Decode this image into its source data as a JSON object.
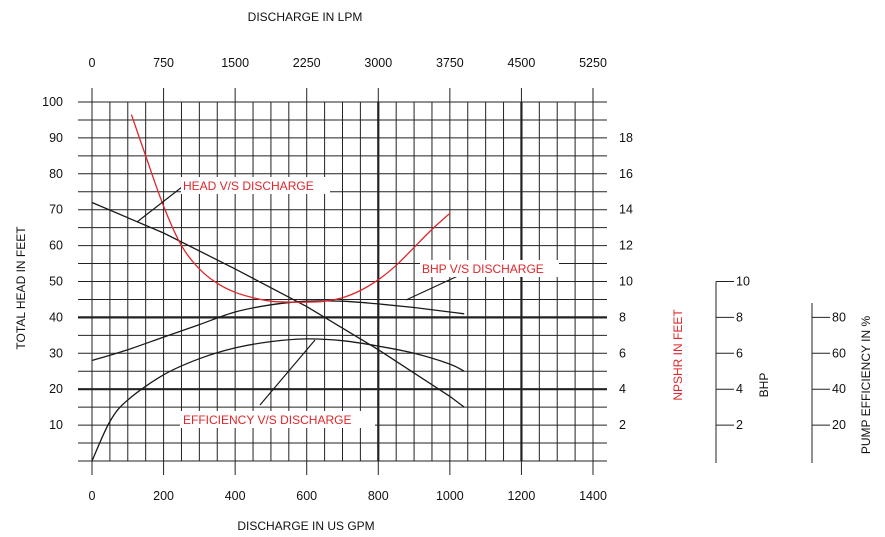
{
  "colors": {
    "curve_black": "#1a1a1a",
    "curve_red": "#e0262b",
    "grid": "#222222",
    "text": "#111111"
  },
  "chart_data": {
    "type": "line",
    "title": "",
    "xlabel": "DISCHARGE IN US GPM",
    "x2label": "DISCHARGE IN LPM",
    "ylabel": "TOTAL HEAD IN FEET",
    "y2label": "NPSHR IN FEET",
    "y3label": "BHP",
    "y4label": "PUMP EFFICIENCY IN %",
    "xlim": [
      0,
      1400
    ],
    "x2lim": [
      0,
      5250
    ],
    "ylim": [
      0,
      100
    ],
    "y2lim": [
      0,
      20
    ],
    "grid": true,
    "x_ticks": [
      "0",
      "200",
      "400",
      "600",
      "800",
      "1000",
      "1200",
      "1400"
    ],
    "x2_ticks": [
      "0",
      "750",
      "1500",
      "2250",
      "3000",
      "3750",
      "4500",
      "5250"
    ],
    "y_ticks": [
      "10",
      "20",
      "30",
      "40",
      "50",
      "60",
      "70",
      "80",
      "90",
      "100"
    ],
    "y2_ticks": [
      "2",
      "4",
      "6",
      "8",
      "10",
      "12",
      "14",
      "16",
      "18"
    ],
    "y3_ticks": [
      "2",
      "4",
      "6",
      "8",
      "10"
    ],
    "y4_ticks": [
      "20",
      "40",
      "60",
      "80"
    ],
    "series": [
      {
        "name": "HEAD V/S DISCHARGE",
        "axis": "TOTAL HEAD IN FEET",
        "color": "#1a1a1a",
        "x": [
          0,
          200,
          400,
          600,
          800,
          1000,
          1040
        ],
        "y": [
          72,
          63.5,
          53.5,
          43,
          31,
          18,
          15
        ]
      },
      {
        "name": "BHP V/S DISCHARGE",
        "axis": "BHP",
        "color": "#1a1a1a",
        "x": [
          0,
          100,
          200,
          300,
          400,
          500,
          600,
          700,
          800,
          900,
          1000,
          1040
        ],
        "y": [
          5.6,
          6.2,
          6.9,
          7.6,
          8.3,
          8.7,
          8.9,
          8.9,
          8.75,
          8.55,
          8.3,
          8.2
        ]
      },
      {
        "name": "EFFICIENCY V/S DISCHARGE",
        "axis": "PUMP EFFICIENCY IN %",
        "color": "#1a1a1a",
        "x": [
          0,
          50,
          100,
          200,
          300,
          400,
          500,
          600,
          700,
          800,
          900,
          1000,
          1040
        ],
        "y": [
          0,
          22,
          34,
          48,
          57,
          63,
          66.5,
          68,
          67,
          64,
          60,
          54,
          50
        ]
      },
      {
        "name": "",
        "axis": "NPSHR IN FEET",
        "color": "#e0262b",
        "x": [
          110,
          150,
          200,
          250,
          300,
          350,
          400,
          450,
          500,
          550,
          600,
          650,
          700,
          750,
          800,
          850,
          900,
          950,
          1000
        ],
        "y": [
          19.3,
          17,
          14.2,
          12,
          10.7,
          9.9,
          9.4,
          9.1,
          8.9,
          8.85,
          8.85,
          8.9,
          9.1,
          9.5,
          10.1,
          10.9,
          11.9,
          12.9,
          13.8
        ]
      }
    ],
    "annotations": [
      "HEAD V/S DISCHARGE",
      "BHP V/S DISCHARGE",
      "EFFICIENCY V/S DISCHARGE"
    ]
  }
}
